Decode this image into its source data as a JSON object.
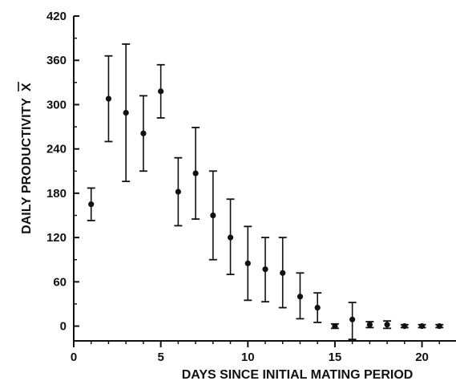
{
  "chart_data": {
    "type": "scatter",
    "title": "",
    "xlabel": "DAYS SINCE INITIAL MATING PERIOD",
    "ylabel": "DAILY PRODUCTIVITY",
    "ylabel_symbol": "X",
    "xlim": [
      0,
      22
    ],
    "ylim": [
      -20,
      420
    ],
    "xticks": [
      0,
      5,
      10,
      15,
      20
    ],
    "yticks": [
      0,
      60,
      120,
      180,
      240,
      300,
      360,
      420
    ],
    "grid": false,
    "legend": "none",
    "series": [
      {
        "x": [
          1,
          2,
          3,
          4,
          5,
          6,
          7,
          8,
          9,
          10,
          11,
          12,
          13,
          14,
          15,
          16,
          17,
          18,
          19,
          20,
          21
        ],
        "y": [
          165,
          308,
          289,
          261,
          318,
          182,
          207,
          150,
          120,
          85,
          77,
          72,
          40,
          25,
          0,
          9,
          2,
          2,
          0,
          0,
          0
        ],
        "y_low": [
          143,
          250,
          196,
          210,
          282,
          136,
          145,
          90,
          70,
          35,
          33,
          25,
          10,
          5,
          -3,
          -18,
          -2,
          -3,
          -2,
          -2,
          -2
        ],
        "y_high": [
          187,
          366,
          382,
          312,
          354,
          228,
          269,
          210,
          172,
          135,
          120,
          120,
          72,
          45,
          3,
          32,
          6,
          7,
          2,
          2,
          2
        ]
      }
    ]
  }
}
